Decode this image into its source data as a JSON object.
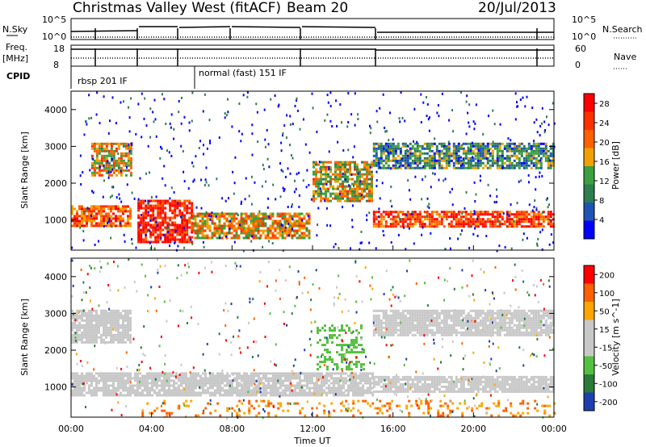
{
  "header": {
    "station": "Christmas Valley West (fitACF)",
    "beam": "Beam 20",
    "date": "20/Jul/2013"
  },
  "summary_panel": {
    "nsky_label": "N.Sky",
    "nsearch_label": "N.Search",
    "nsky_ticks": [
      "10^5",
      "10^0"
    ],
    "freq_label": "Freq.",
    "freq_unit": "[MHz]",
    "freq_ticks": [
      "18",
      "8"
    ],
    "nave_label": "Nave",
    "nave_ticks": [
      "60",
      "0"
    ],
    "cpid_label": "CPID",
    "modes": [
      "rbsp 201 IF",
      "normal (fast) 151 IF"
    ]
  },
  "colors": {
    "power_scale": [
      "#0000ff",
      "#1e55b4",
      "#2e7d4f",
      "#3aa040",
      "#f0a000",
      "#ff6000",
      "#ff3000",
      "#ff0000"
    ],
    "velocity_scale": [
      "#1f3fb0",
      "#2a7a3a",
      "#55c040",
      "#c8c8c8",
      "#c8c8c8",
      "#ffa500",
      "#ff6000",
      "#ff0000"
    ],
    "ground_scatter": "#c8c8c8"
  },
  "chart_data": [
    {
      "type": "heatmap",
      "name": "power",
      "ylabel": "Slant Range [km]",
      "xlim": [
        "00:00",
        "24:00"
      ],
      "ylim": [
        180,
        4500
      ],
      "y_ticks": [
        1000,
        2000,
        3000,
        4000
      ],
      "colorbar": {
        "label": "Power [dB]",
        "range": [
          0,
          30
        ],
        "ticks": [
          4,
          8,
          12,
          16,
          20,
          24,
          28
        ]
      },
      "bands": [
        {
          "t": [
            1.0,
            3.0
          ],
          "range": [
            2200,
            3100
          ],
          "value": 18
        },
        {
          "t": [
            0.0,
            3.0
          ],
          "range": [
            850,
            1400
          ],
          "value": 22
        },
        {
          "t": [
            3.3,
            6.0
          ],
          "range": [
            400,
            1550
          ],
          "value": 26
        },
        {
          "t": [
            6.0,
            11.8
          ],
          "range": [
            500,
            1200
          ],
          "value": 18
        },
        {
          "t": [
            12.0,
            15.0
          ],
          "range": [
            1500,
            2600
          ],
          "value": 16
        },
        {
          "t": [
            15.0,
            24.0
          ],
          "range": [
            850,
            1250
          ],
          "value": 24
        },
        {
          "t": [
            15.0,
            24.0
          ],
          "range": [
            2400,
            3100
          ],
          "value": 10
        }
      ]
    },
    {
      "type": "heatmap",
      "name": "velocity",
      "ylabel": "Slant Range [km]",
      "xlabel": "Time UT",
      "xlim": [
        "00:00",
        "24:00"
      ],
      "x_ticks": [
        "00:00",
        "04:00",
        "08:00",
        "12:00",
        "16:00",
        "20:00",
        "00:00"
      ],
      "ylim": [
        180,
        4500
      ],
      "y_ticks": [
        1000,
        2000,
        3000,
        4000
      ],
      "colorbar": {
        "label": "Velocity [m s^-1]",
        "ticks": [
          200,
          100,
          50,
          15,
          -15,
          -50,
          -100,
          -200
        ]
      },
      "ground_scatter_bands": [
        {
          "t": [
            0.0,
            3.0
          ],
          "range": [
            2200,
            3100
          ]
        },
        {
          "t": [
            0.0,
            15.0
          ],
          "range": [
            800,
            1400
          ]
        },
        {
          "t": [
            15.0,
            24.0
          ],
          "range": [
            850,
            1300
          ]
        },
        {
          "t": [
            15.0,
            24.0
          ],
          "range": [
            2400,
            3100
          ]
        }
      ]
    }
  ]
}
